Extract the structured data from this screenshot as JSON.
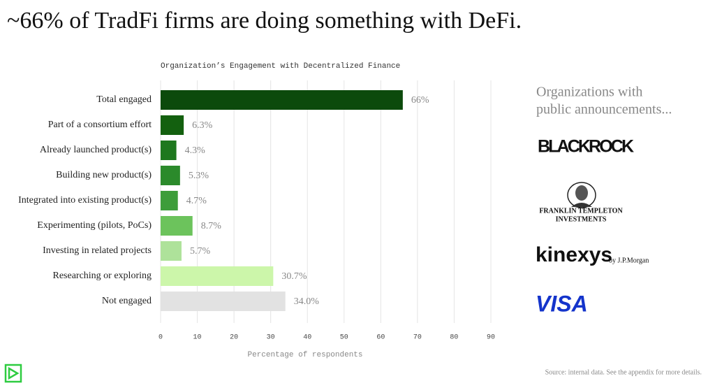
{
  "headline": "~66% of TradFi firms are doing something with DeFi.",
  "chart_data": {
    "type": "bar",
    "orientation": "horizontal",
    "title": "Organization’s Engagement with Decentralized Finance",
    "x_label": "Percentage of respondents",
    "categories": [
      "Total engaged",
      "Part of a consortium effort",
      "Already launched product(s)",
      "Building new product(s)",
      "Integrated into existing product(s)",
      "Experimenting (pilots, PoCs)",
      "Investing in related projects",
      "Researching or exploring",
      "Not engaged"
    ],
    "values": [
      66,
      6.3,
      4.3,
      5.3,
      4.7,
      8.7,
      5.7,
      30.7,
      34.0
    ],
    "value_labels": [
      "66%",
      "6.3%",
      "4.3%",
      "5.3%",
      "4.7%",
      "8.7%",
      "5.7%",
      "30.7%",
      "34.0%"
    ],
    "colors": [
      "#0c4a0c",
      "#13600f",
      "#1e781e",
      "#2b8a2b",
      "#3d9d3a",
      "#6cc35c",
      "#aee29a",
      "#ccf6aa",
      "#e2e2e2"
    ],
    "xlim": [
      0,
      90
    ],
    "xticks": [
      0,
      10,
      20,
      30,
      40,
      50,
      60,
      70,
      80,
      90
    ],
    "grid": true
  },
  "side_panel": {
    "heading": [
      "Organizations with",
      "public announcements..."
    ],
    "logos": {
      "blackrock": "BLACKROCK",
      "franklin": [
        "FRANKLIN TEMPLETON",
        "INVESTMENTS"
      ],
      "kinexys": [
        "kinexys",
        "by J.P.Morgan"
      ],
      "visa": "VISA"
    }
  },
  "source": "Source: internal data.  See the appendix for more details."
}
